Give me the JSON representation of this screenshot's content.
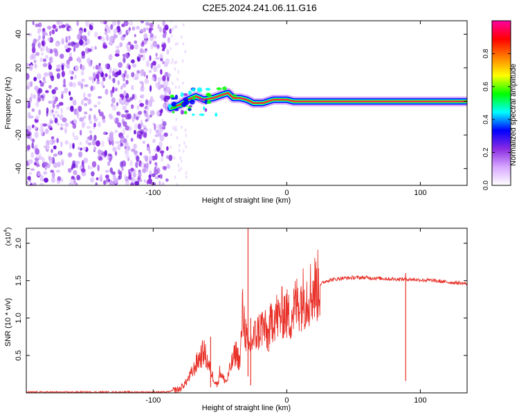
{
  "title": "C2E5.2024.241.06.11.G16",
  "chart_data": [
    {
      "type": "heatmap",
      "title": "C2E5.2024.241.06.11.G16",
      "xlabel": "Height of straight line (km)",
      "ylabel": "Frequency (Hz)",
      "xlim": [
        -195,
        135
      ],
      "ylim": [
        -50,
        48
      ],
      "x_ticks": [
        -100,
        0,
        100
      ],
      "y_ticks": [
        -40,
        -20,
        0,
        20,
        40
      ],
      "x_tick_labels": [
        "-100",
        "0",
        "100"
      ],
      "y_tick_labels": [
        "-40",
        "-20",
        "0",
        "20",
        "40"
      ],
      "colorbar": {
        "label": "Normalized spectral amplitude",
        "range": [
          0.0,
          1.0
        ],
        "ticks": [
          0.0,
          0.2,
          0.4,
          0.6,
          0.8
        ],
        "tick_labels": [
          "0.0",
          "0.2",
          "0.4",
          "0.6",
          "0.8"
        ],
        "colors": [
          "#ffffff",
          "#d7a8ff",
          "#8a2be2",
          "#0000ff",
          "#00ffff",
          "#00ff00",
          "#ffff00",
          "#ff8000",
          "#ff0000",
          "#ff00a0"
        ]
      },
      "noise_region_x": [
        -195,
        -87
      ],
      "frequency_trace": [
        {
          "x": -87,
          "y": -4
        },
        {
          "x": -80,
          "y": -2
        },
        {
          "x": -74,
          "y": 1
        },
        {
          "x": -68,
          "y": 3
        },
        {
          "x": -62,
          "y": 1
        },
        {
          "x": -55,
          "y": 2
        },
        {
          "x": -48,
          "y": 4
        },
        {
          "x": -44,
          "y": 5
        },
        {
          "x": -40,
          "y": 2
        },
        {
          "x": -35,
          "y": 2
        },
        {
          "x": -30,
          "y": 1
        },
        {
          "x": -25,
          "y": -1
        },
        {
          "x": -18,
          "y": -1
        },
        {
          "x": -14,
          "y": 0
        },
        {
          "x": -10,
          "y": 1
        },
        {
          "x": 0,
          "y": 1
        },
        {
          "x": 5,
          "y": 0
        },
        {
          "x": 135,
          "y": 0
        }
      ]
    },
    {
      "type": "line",
      "xlabel": "Height of straight line (km)",
      "ylabel": "SNR (10 * v/v)",
      "y_multiplier_label": "(x10",
      "y_multiplier_exp": "4",
      "y_multiplier_close": ")",
      "xlim": [
        -195,
        135
      ],
      "ylim": [
        0,
        2.2
      ],
      "x_ticks": [
        -100,
        0,
        100
      ],
      "y_ticks": [
        0.5,
        1.0,
        1.5,
        2.0
      ],
      "x_tick_labels": [
        "-100",
        "0",
        "100"
      ],
      "y_tick_labels": [
        "0.5",
        "1.0",
        "1.5",
        "2.0"
      ],
      "series": [
        {
          "color": "#e8322a",
          "x": [
            -195,
            -90,
            -80,
            -75,
            -70,
            -66,
            -62,
            -58,
            -55,
            -52,
            -50,
            -48,
            -45,
            -42,
            -38,
            -35,
            -33,
            -31,
            -29,
            -26,
            -22,
            -18,
            -14,
            -10,
            -6,
            -2,
            2,
            6,
            10,
            15,
            20,
            25,
            30,
            40,
            50,
            60,
            70,
            80,
            90,
            100,
            110,
            120,
            135
          ],
          "y": [
            0.01,
            0.01,
            0.05,
            0.15,
            0.3,
            0.45,
            0.55,
            0.35,
            0.2,
            0.1,
            0.3,
            0.2,
            0.15,
            0.35,
            0.55,
            0.4,
            1.1,
            0.85,
            0.55,
            0.7,
            0.8,
            0.9,
            0.75,
            1.05,
            1.0,
            1.1,
            1.0,
            1.15,
            1.25,
            1.3,
            1.38,
            1.45,
            1.5,
            1.53,
            1.54,
            1.54,
            1.53,
            1.52,
            1.52,
            1.51,
            1.5,
            1.48,
            1.46
          ]
        }
      ],
      "spikes": [
        {
          "x": -57,
          "y": 0.75
        },
        {
          "x": -29,
          "y": 2.2
        },
        {
          "x": -27,
          "y": 1.0
        },
        {
          "x": 89,
          "y": 1.6
        }
      ]
    }
  ]
}
